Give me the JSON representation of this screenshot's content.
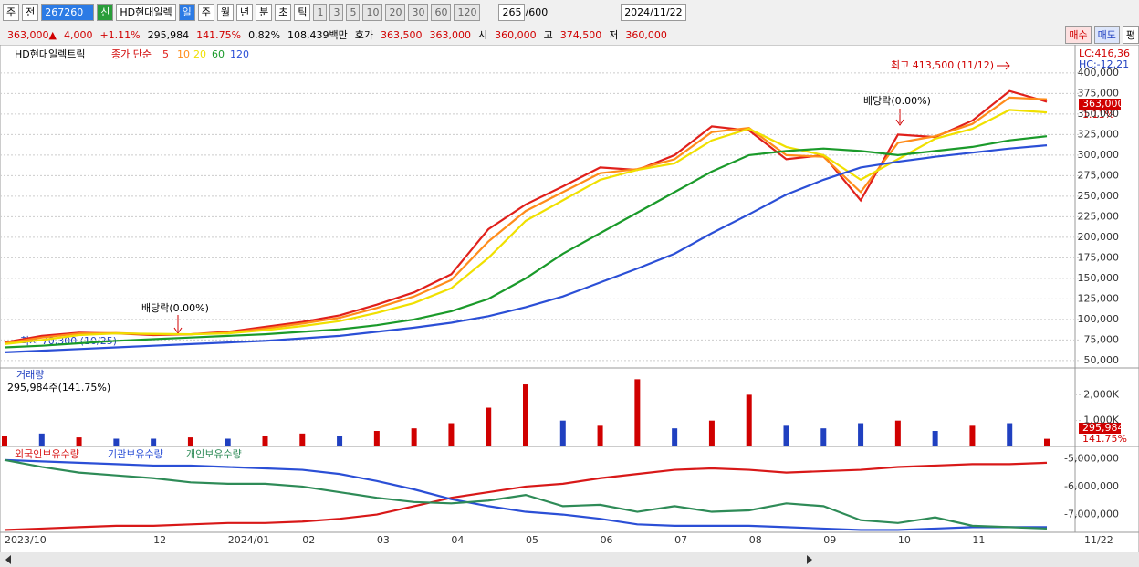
{
  "toolbar": {
    "market": "주",
    "prev": "전",
    "code": "267260",
    "name": "HD현대일렉",
    "badge": "신",
    "periods": [
      "일",
      "주",
      "월",
      "년",
      "분",
      "초",
      "틱"
    ],
    "intervals": [
      "1",
      "3",
      "5",
      "10",
      "20",
      "30",
      "60",
      "120"
    ],
    "count": "265",
    "max": "/600",
    "date": "2024/11/22"
  },
  "quote": [
    {
      "text": "363,000▲",
      "color": "#d00000"
    },
    {
      "text": "4,000",
      "color": "#d00000"
    },
    {
      "text": "+1.11%",
      "color": "#d00000"
    },
    {
      "text": "295,984",
      "color": "#000000"
    },
    {
      "text": "141.75%",
      "color": "#d00000"
    },
    {
      "text": "0.82%",
      "color": "#000000"
    },
    {
      "text": "108,439백만",
      "color": "#000000"
    },
    {
      "text": "호가",
      "color": "#000000"
    },
    {
      "text": "363,500",
      "color": "#d00000"
    },
    {
      "text": "363,000",
      "color": "#d00000"
    },
    {
      "text": "시",
      "color": "#000000"
    },
    {
      "text": "360,000",
      "color": "#d00000"
    },
    {
      "text": "고",
      "color": "#000000"
    },
    {
      "text": "374,500",
      "color": "#d00000"
    },
    {
      "text": "저",
      "color": "#000000"
    },
    {
      "text": "360,000",
      "color": "#d00000"
    }
  ],
  "orders": [
    "매수",
    "매도",
    "평"
  ],
  "chart_data": [
    {
      "type": "line",
      "title": "HD현대일렉트릭",
      "legend_prefix": "종가 단순",
      "categories": [
        "2023/10",
        null,
        null,
        null,
        "12",
        null,
        "2024/01",
        null,
        "02",
        null,
        "03",
        null,
        "04",
        null,
        "05",
        null,
        "06",
        null,
        "07",
        null,
        "08",
        null,
        "09",
        null,
        "10",
        null,
        "11",
        null,
        null
      ],
      "x_end_label": "11/22",
      "series": [
        {
          "name": "5",
          "color": "#e0201b",
          "values": [
            72000,
            80000,
            84000,
            83000,
            81000,
            82000,
            85000,
            91000,
            97000,
            105000,
            118000,
            133000,
            155000,
            210000,
            240000,
            262000,
            285000,
            282000,
            300000,
            335000,
            330000,
            295000,
            300000,
            245000,
            325000,
            322000,
            342000,
            378000,
            365000
          ]
        },
        {
          "name": "10",
          "color": "#ff8c1a",
          "values": [
            71000,
            78000,
            83000,
            83500,
            82000,
            82000,
            84000,
            89000,
            95000,
            102000,
            114000,
            128000,
            148000,
            195000,
            232000,
            255000,
            278000,
            283000,
            295000,
            328000,
            333000,
            300000,
            298000,
            255000,
            315000,
            323000,
            338000,
            370000,
            368000
          ]
        },
        {
          "name": "20",
          "color": "#f0e000",
          "values": [
            70000,
            75000,
            81000,
            83000,
            82500,
            82000,
            83000,
            87000,
            92000,
            98000,
            108000,
            120000,
            138000,
            175000,
            220000,
            245000,
            270000,
            282000,
            290000,
            318000,
            332000,
            310000,
            300000,
            270000,
            295000,
            320000,
            332000,
            355000,
            352000
          ]
        },
        {
          "name": "60",
          "color": "#1a9a2a",
          "values": [
            66000,
            68000,
            71000,
            74000,
            76000,
            78000,
            80000,
            82000,
            85000,
            88000,
            93000,
            100000,
            110000,
            125000,
            150000,
            180000,
            205000,
            230000,
            255000,
            280000,
            300000,
            305000,
            308000,
            305000,
            300000,
            305000,
            310000,
            318000,
            323000
          ]
        },
        {
          "name": "120",
          "color": "#2b4fd6",
          "values": [
            60000,
            62000,
            64000,
            66000,
            68000,
            70000,
            72000,
            74000,
            77000,
            80000,
            85000,
            90000,
            96000,
            104000,
            115000,
            128000,
            145000,
            162000,
            180000,
            205000,
            228000,
            252000,
            270000,
            285000,
            292000,
            298000,
            303000,
            308000,
            312000
          ]
        }
      ],
      "ylim": [
        41000,
        431000
      ],
      "yticks": [
        {
          "value": 50000,
          "label": "50,000"
        },
        {
          "value": 75000,
          "label": "75,000"
        },
        {
          "value": 100000,
          "label": "100,000"
        },
        {
          "value": 125000,
          "label": "125,000"
        },
        {
          "value": 150000,
          "label": "150,000"
        },
        {
          "value": 175000,
          "label": "175,000"
        },
        {
          "value": 200000,
          "label": "200,000"
        },
        {
          "value": 225000,
          "label": "225,000"
        },
        {
          "value": 250000,
          "label": "250,000"
        },
        {
          "value": 275000,
          "label": "275,000"
        },
        {
          "value": 300000,
          "label": "300,000"
        },
        {
          "value": 325000,
          "label": "325,000"
        },
        {
          "value": 350000,
          "label": "350,000"
        },
        {
          "value": 375000,
          "label": "375,000"
        },
        {
          "value": 400000,
          "label": "400,000"
        }
      ],
      "grid": true,
      "annotations": [
        "최고 413,500 (11/12)",
        "배당락(0.00%)",
        "배당락(0.00%)",
        "최저 70,300 (10/25)"
      ],
      "info": [
        "LC:416,36",
        "HC:-12.21"
      ],
      "last_price": "363,000",
      "last_change": "1.11%"
    },
    {
      "type": "bar",
      "title": "거래량",
      "subtitle": "295,984주(141.75%)",
      "values": [
        400000,
        500000,
        350000,
        300000,
        300000,
        350000,
        300000,
        400000,
        500000,
        400000,
        600000,
        700000,
        900000,
        1500000,
        2400000,
        1000000,
        800000,
        2600000,
        700000,
        1000000,
        2000000,
        800000,
        700000,
        900000,
        1000000,
        600000,
        800000,
        900000,
        295984
      ],
      "colors": [
        "#d00000",
        "#2040c0",
        "#d00000",
        "#2040c0",
        "#2040c0",
        "#d00000",
        "#2040c0",
        "#d00000",
        "#d00000",
        "#2040c0",
        "#d00000",
        "#d00000",
        "#d00000",
        "#d00000",
        "#d00000",
        "#2040c0",
        "#d00000",
        "#d00000",
        "#2040c0",
        "#d00000",
        "#d00000",
        "#2040c0",
        "#2040c0",
        "#2040c0",
        "#d00000",
        "#2040c0",
        "#d00000",
        "#2040c0",
        "#d00000"
      ],
      "ylim": [
        0,
        3037000
      ],
      "yticks": [
        {
          "value": 1000000,
          "label": "1,000K"
        },
        {
          "value": 2000000,
          "label": "2,000K"
        }
      ],
      "last_volume": "295,984",
      "last_ratio": "141.75%"
    },
    {
      "type": "line",
      "series": [
        {
          "name": "외국인보유수량",
          "color": "#d81818",
          "values": [
            -7550000,
            -7500000,
            -7450000,
            -7400000,
            -7400000,
            -7350000,
            -7300000,
            -7300000,
            -7250000,
            -7150000,
            -7000000,
            -6700000,
            -6400000,
            -6200000,
            -6000000,
            -5900000,
            -5700000,
            -5550000,
            -5400000,
            -5350000,
            -5400000,
            -5500000,
            -5450000,
            -5400000,
            -5300000,
            -5250000,
            -5200000,
            -5200000,
            -5150000
          ]
        },
        {
          "name": "기관보유수량",
          "color": "#2b4fd6",
          "values": [
            -5050000,
            -5100000,
            -5150000,
            -5200000,
            -5250000,
            -5250000,
            -5300000,
            -5350000,
            -5400000,
            -5550000,
            -5800000,
            -6100000,
            -6450000,
            -6700000,
            -6900000,
            -7000000,
            -7150000,
            -7350000,
            -7400000,
            -7400000,
            -7400000,
            -7450000,
            -7500000,
            -7550000,
            -7550000,
            -7500000,
            -7450000,
            -7450000,
            -7450000
          ]
        },
        {
          "name": "개인보유수량",
          "color": "#2e8b57",
          "values": [
            -5050000,
            -5300000,
            -5500000,
            -5600000,
            -5700000,
            -5850000,
            -5900000,
            -5900000,
            -6000000,
            -6200000,
            -6400000,
            -6550000,
            -6600000,
            -6500000,
            -6300000,
            -6700000,
            -6650000,
            -6900000,
            -6700000,
            -6900000,
            -6850000,
            -6600000,
            -6700000,
            -7200000,
            -7300000,
            -7100000,
            -7400000,
            -7450000,
            -7500000
          ]
        }
      ],
      "ylim": [
        -7633000,
        -4567000
      ],
      "yticks": [
        {
          "value": -5000000,
          "label": "-5,000,000"
        },
        {
          "value": -6000000,
          "label": "-6,000,000"
        },
        {
          "value": -7000000,
          "label": "-7,000,000"
        }
      ]
    }
  ]
}
